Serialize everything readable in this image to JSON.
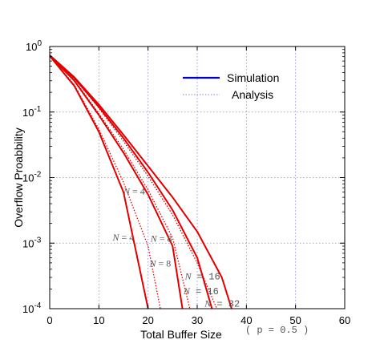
{
  "chart_data": {
    "type": "line",
    "xlabel": "Total Buffer Size",
    "ylabel": "Overflow Proabbility",
    "xlabel_note": "( p = 0.5 )",
    "xlim": [
      0,
      60
    ],
    "ylim": [
      0.0001,
      1
    ],
    "yscale": "log",
    "grid": true,
    "legend_position": "top-right",
    "x_ticks": [
      "0",
      "10",
      "20",
      "30",
      "40",
      "50",
      "60"
    ],
    "y_ticks": [
      {
        "base": "10",
        "exp": "0"
      },
      {
        "base": "10",
        "exp": "-1"
      },
      {
        "base": "10",
        "exp": "-2"
      },
      {
        "base": "10",
        "exp": "-3"
      },
      {
        "base": "10",
        "exp": "-4"
      }
    ],
    "legend": [
      {
        "label": "Simulation",
        "color": "#0000cc",
        "style": "solid"
      },
      {
        "label": "Analysis",
        "color": "#9999dd",
        "style": "dotted"
      }
    ],
    "series": [
      {
        "kind": "simulation",
        "points": [
          [
            0,
            0.72
          ],
          [
            5,
            0.25
          ],
          [
            10,
            0.05
          ],
          [
            15,
            0.006
          ],
          [
            20,
            0.0001
          ]
        ]
      },
      {
        "kind": "simulation",
        "points": [
          [
            0,
            0.72
          ],
          [
            5,
            0.3
          ],
          [
            10,
            0.09
          ],
          [
            15,
            0.024
          ],
          [
            20,
            0.0055
          ],
          [
            25,
            0.0009
          ],
          [
            27,
            0.0001
          ]
        ]
      },
      {
        "kind": "simulation",
        "points": [
          [
            0,
            0.72
          ],
          [
            5,
            0.33
          ],
          [
            10,
            0.12
          ],
          [
            15,
            0.04
          ],
          [
            20,
            0.012
          ],
          [
            25,
            0.0032
          ],
          [
            30,
            0.0006
          ],
          [
            33,
            0.0001
          ]
        ]
      },
      {
        "kind": "simulation",
        "points": [
          [
            0,
            0.74
          ],
          [
            5,
            0.34
          ],
          [
            10,
            0.13
          ],
          [
            15,
            0.045
          ],
          [
            20,
            0.015
          ],
          [
            25,
            0.005
          ],
          [
            30,
            0.0015
          ],
          [
            35,
            0.0003
          ],
          [
            37,
            0.0001
          ]
        ]
      },
      {
        "kind": "analysis",
        "points": [
          [
            0,
            0.72
          ],
          [
            5,
            0.26
          ],
          [
            10,
            0.055
          ],
          [
            15,
            0.0085
          ],
          [
            20,
            0.0009
          ],
          [
            22.5,
            0.0001
          ]
        ]
      },
      {
        "kind": "analysis",
        "points": [
          [
            0,
            0.72
          ],
          [
            5,
            0.31
          ],
          [
            10,
            0.095
          ],
          [
            15,
            0.027
          ],
          [
            20,
            0.0065
          ],
          [
            25,
            0.0012
          ],
          [
            28.5,
            0.0001
          ]
        ]
      },
      {
        "kind": "analysis",
        "points": [
          [
            0,
            0.72
          ],
          [
            5,
            0.33
          ],
          [
            10,
            0.115
          ],
          [
            15,
            0.036
          ],
          [
            20,
            0.0105
          ],
          [
            25,
            0.0027
          ],
          [
            30,
            0.0005
          ],
          [
            34,
            0.0001
          ]
        ]
      }
    ],
    "annotations": [
      {
        "text": "N = 4",
        "x": 12.8,
        "y": 0.0011,
        "font": "serif"
      },
      {
        "text": "N = 4",
        "x": 15,
        "y": 0.0055,
        "font": "serif"
      },
      {
        "text": "N = 8",
        "x": 20.5,
        "y": 0.00105,
        "font": "serif"
      },
      {
        "text": "N = 8",
        "x": 20.3,
        "y": 0.00044,
        "font": "serif"
      },
      {
        "text": "N = 16",
        "x": 27.5,
        "y": 0.00028,
        "font": "mono"
      },
      {
        "text": "N = 16",
        "x": 27.2,
        "y": 0.000165,
        "font": "mono"
      },
      {
        "text": "N = 32",
        "x": 31.5,
        "y": 0.000108,
        "font": "mono"
      }
    ]
  }
}
